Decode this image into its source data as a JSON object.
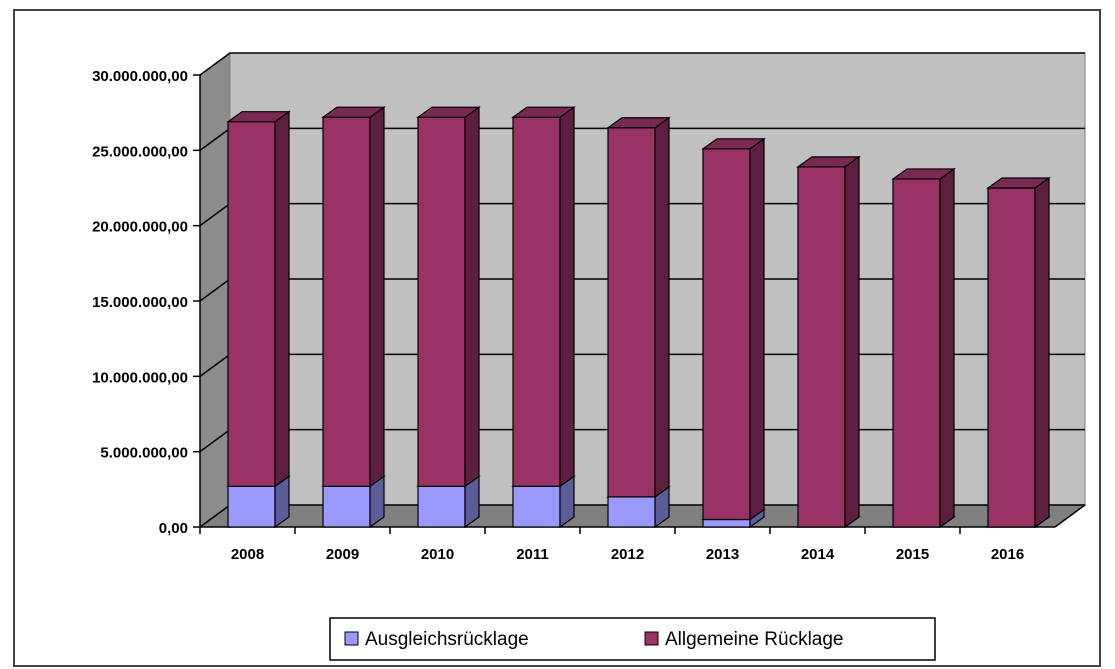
{
  "chart_data": {
    "type": "bar3d_stacked",
    "categories": [
      "2008",
      "2009",
      "2010",
      "2011",
      "2012",
      "2013",
      "2014",
      "2015",
      "2016"
    ],
    "series": [
      {
        "name": "Ausgleichsrücklage",
        "color": "#9999ff",
        "values": [
          2700000,
          2700000,
          2700000,
          2700000,
          2000000,
          500000,
          0,
          0,
          0
        ]
      },
      {
        "name": "Allgemeine Rücklage",
        "color": "#993366",
        "values": [
          24200000,
          24500000,
          24500000,
          24500000,
          24500000,
          24600000,
          23900000,
          23100000,
          22500000
        ]
      }
    ],
    "ylim": [
      0,
      30000000
    ],
    "yticks": [
      {
        "value": 0,
        "label": "0,00"
      },
      {
        "value": 5000000,
        "label": "5.000.000,00"
      },
      {
        "value": 10000000,
        "label": "10.000.000,00"
      },
      {
        "value": 15000000,
        "label": "15.000.000,00"
      },
      {
        "value": 20000000,
        "label": "20.000.000,00"
      },
      {
        "value": 25000000,
        "label": "25.000.000,00"
      },
      {
        "value": 30000000,
        "label": "30.000.000,00"
      }
    ],
    "grid": true,
    "legend": "bottom"
  }
}
